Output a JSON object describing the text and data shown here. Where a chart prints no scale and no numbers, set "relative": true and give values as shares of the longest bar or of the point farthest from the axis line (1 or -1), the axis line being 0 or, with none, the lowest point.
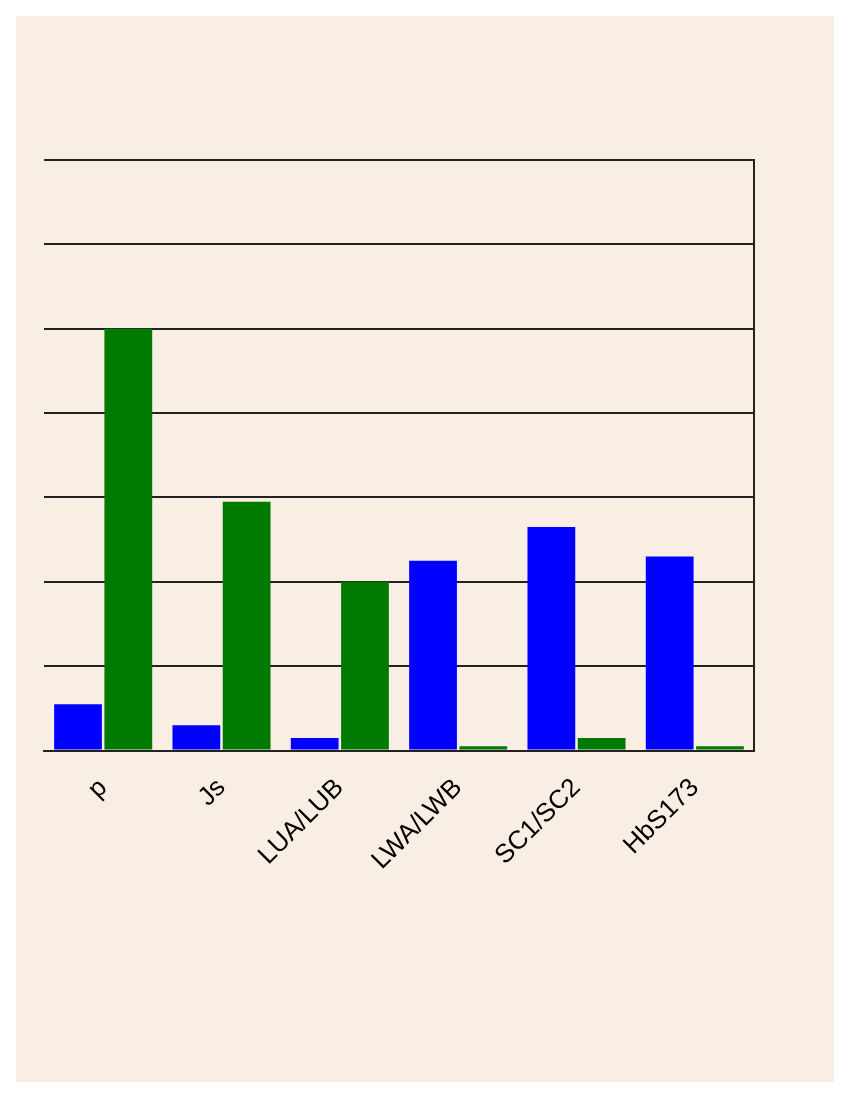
{
  "chart_data": {
    "type": "bar",
    "relative": true,
    "grid": "y",
    "categories": [
      "p",
      "Js",
      "LUA/LUB",
      "LWA/LWB",
      "SC1/SC2",
      "HbS173"
    ],
    "series": [
      {
        "color": "#0000ff",
        "values": [
          0.11,
          0.06,
          0.03,
          0.45,
          0.53,
          0.46
        ]
      },
      {
        "color": "#007a00",
        "values": [
          1,
          0.59,
          0.4,
          0.01,
          0.03,
          0.01
        ]
      }
    ]
  }
}
